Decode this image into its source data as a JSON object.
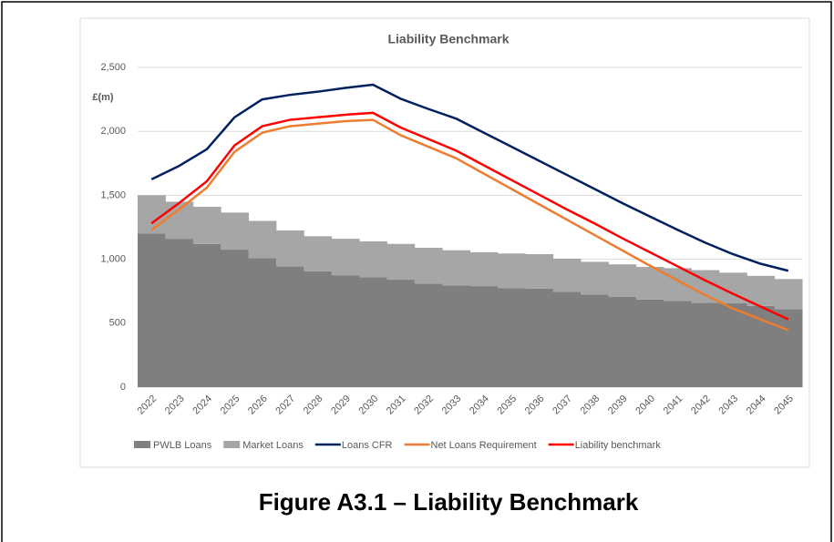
{
  "chart_data": {
    "type": "combo",
    "title": "Liability Benchmark",
    "y_label": "£(m)",
    "categories": [
      "2022",
      "2023",
      "2024",
      "2025",
      "2026",
      "2027",
      "2028",
      "2029",
      "2030",
      "2031",
      "2032",
      "2033",
      "2034",
      "2035",
      "2036",
      "2037",
      "2038",
      "2039",
      "2040",
      "2041",
      "2042",
      "2043",
      "2044",
      "2045"
    ],
    "series": [
      {
        "name": "PWLB Loans",
        "kind": "stacked-area",
        "color": "#7f7f7f",
        "values": [
          1200,
          1160,
          1120,
          1075,
          1010,
          945,
          905,
          875,
          860,
          840,
          810,
          795,
          790,
          775,
          770,
          745,
          725,
          705,
          685,
          675,
          660,
          655,
          635,
          610
        ]
      },
      {
        "name": "Market Loans",
        "kind": "stacked-area",
        "color": "#a6a6a6",
        "values": [
          300,
          290,
          290,
          290,
          290,
          280,
          275,
          285,
          280,
          280,
          280,
          275,
          265,
          270,
          270,
          260,
          255,
          255,
          255,
          255,
          255,
          240,
          235,
          235
        ]
      },
      {
        "name": "Loans CFR",
        "kind": "line",
        "color": "#002060",
        "values": [
          1625,
          1730,
          1860,
          2110,
          2250,
          2285,
          2310,
          2340,
          2365,
          2255,
          2175,
          2100,
          1990,
          1880,
          1770,
          1660,
          1550,
          1440,
          1335,
          1230,
          1130,
          1040,
          965,
          910
        ]
      },
      {
        "name": "Net Loans Requirement",
        "kind": "line",
        "color": "#ed7d31",
        "values": [
          1230,
          1390,
          1560,
          1840,
          1990,
          2040,
          2060,
          2080,
          2090,
          1970,
          1880,
          1790,
          1670,
          1550,
          1430,
          1310,
          1190,
          1070,
          950,
          835,
          720,
          615,
          530,
          445
        ]
      },
      {
        "name": "Liability benchmark",
        "kind": "line",
        "color": "#ff0000",
        "values": [
          1280,
          1440,
          1610,
          1890,
          2040,
          2090,
          2110,
          2130,
          2145,
          2030,
          1940,
          1850,
          1735,
          1620,
          1505,
          1390,
          1280,
          1165,
          1055,
          945,
          835,
          730,
          630,
          530
        ]
      }
    ],
    "ylim": [
      0,
      2500
    ],
    "yticks": [
      0,
      500,
      {
        "value": 1000,
        "label": "1,000"
      },
      {
        "value": 1500,
        "label": "1,500"
      },
      {
        "value": 2000,
        "label": "2,000"
      },
      {
        "value": 2500,
        "label": "2,500"
      }
    ],
    "grid": true,
    "legend": "bottom"
  },
  "figure_caption": "Figure A3.1 – Liability Benchmark"
}
